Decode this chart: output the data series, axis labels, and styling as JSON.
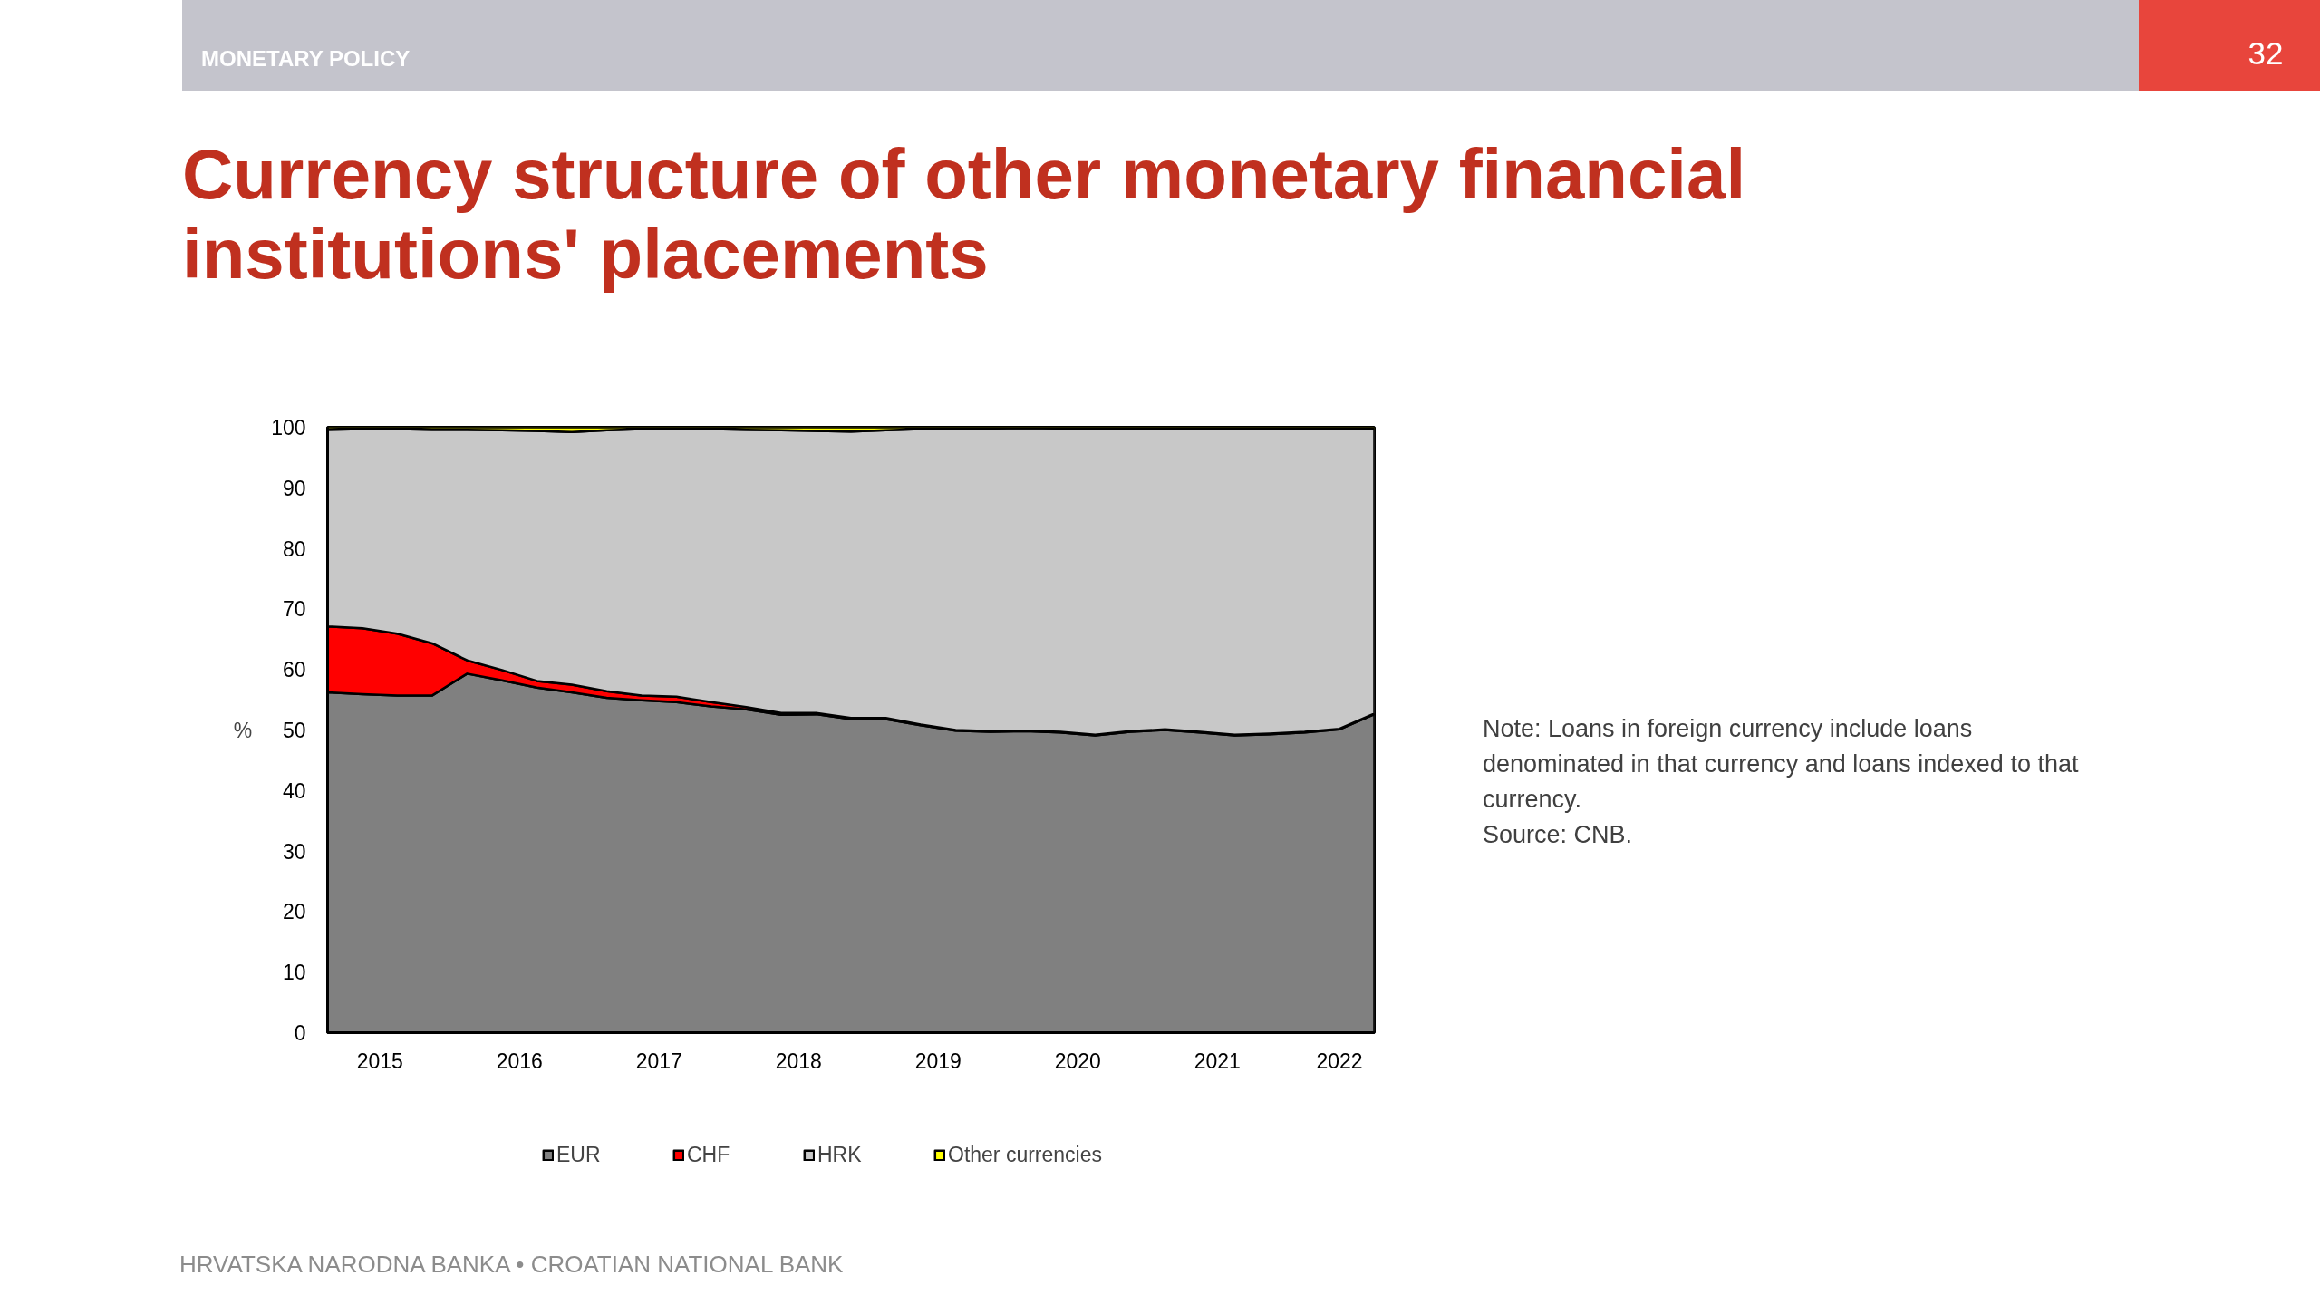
{
  "chart_data": {
    "type": "area",
    "stacked": true,
    "title": "Currency structure of other monetary financial institutions' placements",
    "ylabel": "%",
    "x": [
      2015.125,
      2015.375,
      2015.625,
      2015.875,
      2016.125,
      2016.375,
      2016.625,
      2016.875,
      2017.125,
      2017.375,
      2017.625,
      2017.875,
      2018.125,
      2018.375,
      2018.625,
      2018.875,
      2019.125,
      2019.375,
      2019.625,
      2019.875,
      2020.125,
      2020.375,
      2020.625,
      2020.875,
      2021.125,
      2021.375,
      2021.625,
      2021.875,
      2022.125,
      2022.375,
      2022.625
    ],
    "xlim": [
      2015.125,
      2022.625
    ],
    "xticks": [
      {
        "value": 2015.5,
        "label": "2015"
      },
      {
        "value": 2016.5,
        "label": "2016"
      },
      {
        "value": 2017.5,
        "label": "2017"
      },
      {
        "value": 2018.5,
        "label": "2018"
      },
      {
        "value": 2019.5,
        "label": "2019"
      },
      {
        "value": 2020.5,
        "label": "2020"
      },
      {
        "value": 2021.5,
        "label": "2021"
      },
      {
        "value": 2022.375,
        "label": "2022"
      }
    ],
    "ylim": [
      0,
      100
    ],
    "yticks": [
      0,
      10,
      20,
      30,
      40,
      50,
      60,
      70,
      80,
      90,
      100
    ],
    "legend": "bottom",
    "series": [
      {
        "name": "EUR",
        "color": "#808080",
        "values": [
          56.2,
          55.9,
          55.7,
          55.7,
          59.3,
          58.2,
          57.0,
          56.2,
          55.3,
          54.9,
          54.6,
          53.9,
          53.4,
          52.5,
          52.6,
          51.8,
          51.8,
          50.8,
          49.9,
          49.7,
          49.8,
          49.6,
          49.1,
          49.7,
          50.0,
          49.6,
          49.1,
          49.3,
          49.6,
          50.1,
          52.6
        ]
      },
      {
        "name": "CHF",
        "color": "#ff0000",
        "values": [
          10.9,
          10.9,
          10.2,
          8.6,
          2.2,
          1.7,
          1.1,
          1.3,
          1.1,
          0.8,
          0.9,
          0.7,
          0.4,
          0.3,
          0.2,
          0.2,
          0.2,
          0.1,
          0.1,
          0.1,
          0.1,
          0.1,
          0.1,
          0.1,
          0.1,
          0.1,
          0.1,
          0.1,
          0.1,
          0.1,
          0.1
        ]
      },
      {
        "name": "HRK",
        "color": "#c8c8c8",
        "values": [
          32.5,
          32.9,
          33.8,
          35.3,
          38.1,
          39.6,
          41.3,
          41.7,
          43.1,
          44.0,
          44.2,
          45.1,
          45.8,
          46.7,
          46.6,
          47.3,
          47.5,
          48.8,
          49.7,
          50.0,
          50.0,
          50.1,
          50.6,
          50.0,
          49.7,
          50.1,
          50.6,
          50.4,
          50.1,
          49.6,
          47.0
        ]
      },
      {
        "name": "Other currencies",
        "color": "#ffff00",
        "values": [
          0.4,
          0.3,
          0.3,
          0.4,
          0.4,
          0.5,
          0.6,
          0.8,
          0.5,
          0.3,
          0.3,
          0.3,
          0.4,
          0.5,
          0.6,
          0.7,
          0.5,
          0.3,
          0.3,
          0.2,
          0.1,
          0.2,
          0.2,
          0.2,
          0.2,
          0.2,
          0.2,
          0.2,
          0.2,
          0.2,
          0.3
        ]
      }
    ],
    "annotations": [
      "MONETARY POLICY",
      "32",
      "Note: Loans in foreign currency include loans denominated in that currency and loans indexed to that currency.",
      "Source: CNB.",
      "HRVATSKA NARODNA BANKA • CROATIAN NATIONAL BANK"
    ]
  }
}
